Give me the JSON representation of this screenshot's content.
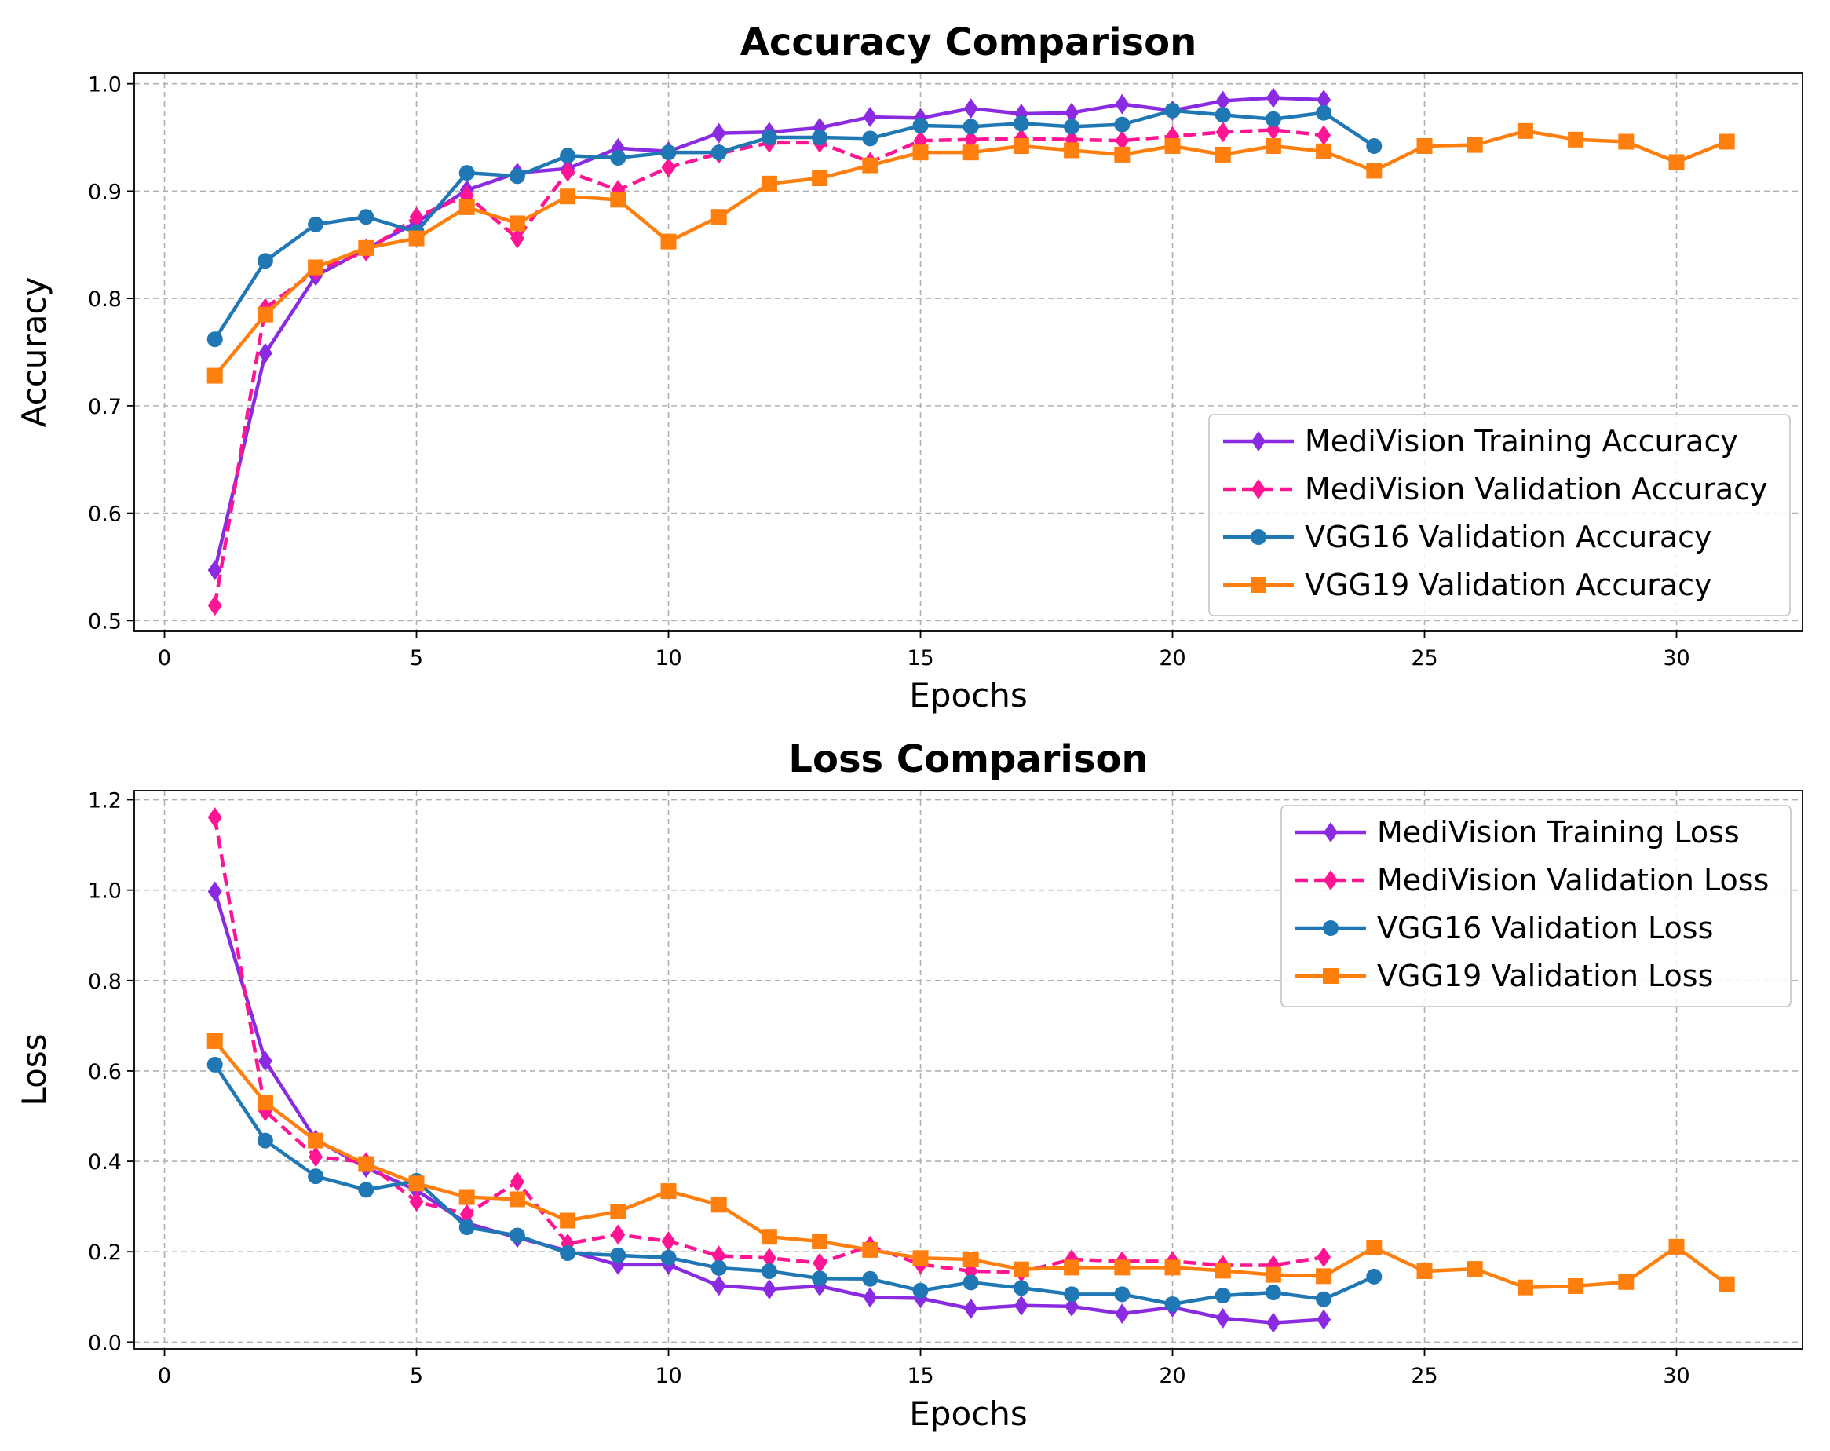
{
  "chart_data": [
    {
      "type": "line",
      "title": "Accuracy Comparison",
      "xlabel": "Epochs",
      "ylabel": "Accuracy",
      "xlim": [
        -0.6,
        32.5
      ],
      "ylim": [
        0.49,
        1.01
      ],
      "xticks": [
        0,
        5,
        10,
        15,
        20,
        25,
        30
      ],
      "yticks": [
        0.5,
        0.6,
        0.7,
        0.8,
        0.9,
        1.0
      ],
      "ytick_labels": [
        "0.5",
        "0.6",
        "0.7",
        "0.8",
        "0.9",
        "1.0"
      ],
      "grid": true,
      "legend_position": "lower-right",
      "series": [
        {
          "name": "MediVision Training Accuracy",
          "color": "#8a2be2",
          "marker": "diamond",
          "linestyle": "solid",
          "x": [
            1,
            2,
            3,
            4,
            5,
            6,
            7,
            8,
            9,
            10,
            11,
            12,
            13,
            14,
            15,
            16,
            17,
            18,
            19,
            20,
            21,
            22,
            23
          ],
          "y": [
            0.547,
            0.749,
            0.821,
            0.846,
            0.871,
            0.901,
            0.917,
            0.921,
            0.94,
            0.937,
            0.954,
            0.955,
            0.959,
            0.969,
            0.968,
            0.977,
            0.972,
            0.973,
            0.981,
            0.975,
            0.984,
            0.987,
            0.985
          ]
        },
        {
          "name": "MediVision Validation Accuracy",
          "color": "#ff1493",
          "marker": "diamond",
          "linestyle": "dashed",
          "x": [
            1,
            2,
            3,
            4,
            5,
            6,
            7,
            8,
            9,
            10,
            11,
            12,
            13,
            14,
            15,
            16,
            17,
            18,
            19,
            20,
            21,
            22,
            23
          ],
          "y": [
            0.514,
            0.791,
            0.826,
            0.844,
            0.876,
            0.896,
            0.856,
            0.918,
            0.901,
            0.922,
            0.935,
            0.945,
            0.945,
            0.927,
            0.947,
            0.948,
            0.949,
            0.948,
            0.947,
            0.951,
            0.955,
            0.957,
            0.952
          ]
        },
        {
          "name": "VGG16 Validation Accuracy",
          "color": "#1f77b4",
          "marker": "circle",
          "linestyle": "solid",
          "x": [
            1,
            2,
            3,
            4,
            5,
            6,
            7,
            8,
            9,
            10,
            11,
            12,
            13,
            14,
            15,
            16,
            17,
            18,
            19,
            20,
            21,
            22,
            23,
            24
          ],
          "y": [
            0.762,
            0.835,
            0.869,
            0.876,
            0.862,
            0.917,
            0.914,
            0.933,
            0.931,
            0.936,
            0.936,
            0.95,
            0.95,
            0.949,
            0.961,
            0.96,
            0.963,
            0.96,
            0.962,
            0.975,
            0.971,
            0.967,
            0.973,
            0.942
          ]
        },
        {
          "name": "VGG19 Validation Accuracy",
          "color": "#ff7f0e",
          "marker": "square",
          "linestyle": "solid",
          "x": [
            1,
            2,
            3,
            4,
            5,
            6,
            7,
            8,
            9,
            10,
            11,
            12,
            13,
            14,
            15,
            16,
            17,
            18,
            19,
            20,
            21,
            22,
            23,
            24,
            25,
            26,
            27,
            28,
            29,
            30,
            31
          ],
          "y": [
            0.728,
            0.785,
            0.829,
            0.847,
            0.856,
            0.885,
            0.87,
            0.895,
            0.892,
            0.853,
            0.876,
            0.907,
            0.912,
            0.924,
            0.936,
            0.936,
            0.942,
            0.938,
            0.934,
            0.942,
            0.934,
            0.942,
            0.937,
            0.919,
            0.942,
            0.943,
            0.956,
            0.948,
            0.946,
            0.927,
            0.946
          ]
        }
      ]
    },
    {
      "type": "line",
      "title": "Loss Comparison",
      "xlabel": "Epochs",
      "ylabel": "Loss",
      "xlim": [
        -0.6,
        32.5
      ],
      "ylim": [
        -0.015,
        1.22
      ],
      "xticks": [
        0,
        5,
        10,
        15,
        20,
        25,
        30
      ],
      "yticks": [
        0.0,
        0.2,
        0.4,
        0.6,
        0.8,
        1.0,
        1.2
      ],
      "ytick_labels": [
        "0.0",
        "0.2",
        "0.4",
        "0.6",
        "0.8",
        "1.0",
        "1.2"
      ],
      "grid": true,
      "legend_position": "upper-right",
      "series": [
        {
          "name": "MediVision Training Loss",
          "color": "#8a2be2",
          "marker": "diamond",
          "linestyle": "solid",
          "x": [
            1,
            2,
            3,
            4,
            5,
            6,
            7,
            8,
            9,
            10,
            11,
            12,
            13,
            14,
            15,
            16,
            17,
            18,
            19,
            20,
            21,
            22,
            23
          ],
          "y": [
            0.997,
            0.622,
            0.448,
            0.386,
            0.336,
            0.263,
            0.231,
            0.202,
            0.171,
            0.171,
            0.125,
            0.117,
            0.124,
            0.099,
            0.097,
            0.074,
            0.081,
            0.079,
            0.063,
            0.077,
            0.053,
            0.043,
            0.05
          ]
        },
        {
          "name": "MediVision Validation Loss",
          "color": "#ff1493",
          "marker": "diamond",
          "linestyle": "dashed",
          "x": [
            1,
            2,
            3,
            4,
            5,
            6,
            7,
            8,
            9,
            10,
            11,
            12,
            13,
            14,
            15,
            16,
            17,
            18,
            19,
            20,
            21,
            22,
            23
          ],
          "y": [
            1.161,
            0.511,
            0.41,
            0.398,
            0.311,
            0.283,
            0.355,
            0.218,
            0.238,
            0.223,
            0.191,
            0.186,
            0.175,
            0.213,
            0.172,
            0.157,
            0.155,
            0.183,
            0.179,
            0.179,
            0.17,
            0.17,
            0.188
          ]
        },
        {
          "name": "VGG16 Validation Loss",
          "color": "#1f77b4",
          "marker": "circle",
          "linestyle": "solid",
          "x": [
            1,
            2,
            3,
            4,
            5,
            6,
            7,
            8,
            9,
            10,
            11,
            12,
            13,
            14,
            15,
            16,
            17,
            18,
            19,
            20,
            21,
            22,
            23,
            24
          ],
          "y": [
            0.614,
            0.446,
            0.367,
            0.337,
            0.357,
            0.254,
            0.236,
            0.197,
            0.192,
            0.187,
            0.164,
            0.157,
            0.141,
            0.14,
            0.114,
            0.132,
            0.12,
            0.106,
            0.106,
            0.084,
            0.103,
            0.11,
            0.095,
            0.145
          ]
        },
        {
          "name": "VGG19 Validation Loss",
          "color": "#ff7f0e",
          "marker": "square",
          "linestyle": "solid",
          "x": [
            1,
            2,
            3,
            4,
            5,
            6,
            7,
            8,
            9,
            10,
            11,
            12,
            13,
            14,
            15,
            16,
            17,
            18,
            19,
            20,
            21,
            22,
            23,
            24,
            25,
            26,
            27,
            28,
            29,
            30,
            31
          ],
          "y": [
            0.666,
            0.53,
            0.446,
            0.394,
            0.351,
            0.321,
            0.316,
            0.269,
            0.289,
            0.334,
            0.304,
            0.233,
            0.223,
            0.204,
            0.186,
            0.183,
            0.161,
            0.165,
            0.165,
            0.165,
            0.158,
            0.149,
            0.146,
            0.209,
            0.157,
            0.162,
            0.121,
            0.124,
            0.133,
            0.211,
            0.128
          ]
        }
      ]
    }
  ]
}
